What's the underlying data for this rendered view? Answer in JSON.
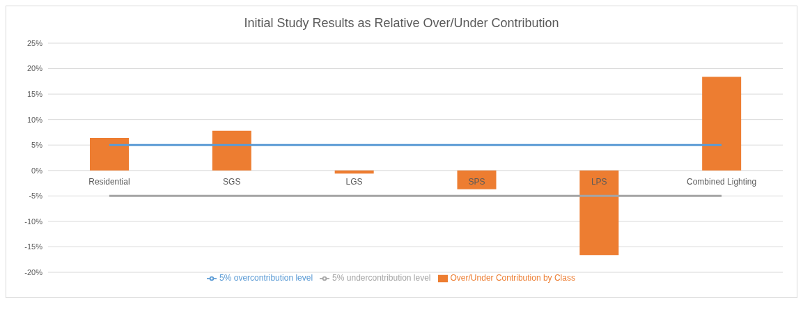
{
  "chart_data": {
    "type": "bar",
    "title": "Initial Study Results as Relative Over/Under Contribution",
    "categories": [
      "Residential",
      "SGS",
      "LGS",
      "SPS",
      "LPS",
      "Combined Lighting"
    ],
    "series": [
      {
        "name": "Over/Under Contribution by Class",
        "color": "#ed7d31",
        "values": [
          6.4,
          7.8,
          -0.6,
          -3.7,
          -16.6,
          18.4
        ]
      },
      {
        "name": "5% overcontribution level",
        "type": "line",
        "color": "#5b9bd5",
        "values": [
          5,
          5,
          5,
          5,
          5,
          5
        ]
      },
      {
        "name": "5% undercontribution level",
        "type": "line",
        "color": "#a5a5a5",
        "values": [
          -5,
          -5,
          -5,
          -5,
          -5,
          -5
        ]
      }
    ],
    "ylim": [
      -20,
      25
    ],
    "yticks": [
      {
        "value": -20,
        "label": "-20%"
      },
      {
        "value": -15,
        "label": "-15%"
      },
      {
        "value": -10,
        "label": "-10%"
      },
      {
        "value": -5,
        "label": "-5%"
      },
      {
        "value": 0,
        "label": "0%"
      },
      {
        "value": 5,
        "label": "5%"
      },
      {
        "value": 10,
        "label": "10%"
      },
      {
        "value": 15,
        "label": "15%"
      },
      {
        "value": 20,
        "label": "20%"
      },
      {
        "value": 25,
        "label": "25%"
      }
    ],
    "grid": "y",
    "legend": "bottom",
    "marker": "none"
  }
}
